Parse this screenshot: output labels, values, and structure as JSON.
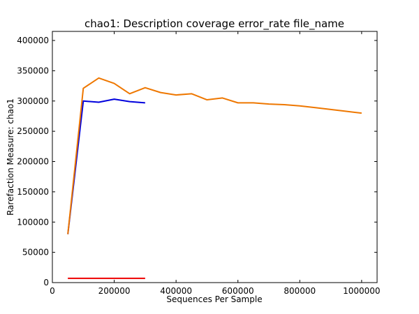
{
  "chart_data": {
    "type": "line",
    "title": "chao1: Description coverage  error_rate  file_name",
    "xlabel": "Sequences Per Sample",
    "ylabel": "Rarefaction Measure: chao1",
    "xlim": [
      0,
      1050000
    ],
    "ylim": [
      0,
      415000
    ],
    "xticks": [
      0,
      200000,
      400000,
      600000,
      800000,
      1000000
    ],
    "yticks": [
      0,
      50000,
      100000,
      150000,
      200000,
      250000,
      300000,
      350000,
      400000
    ],
    "grid": false,
    "series": [
      {
        "color": "#0000dd",
        "x": [
          50000,
          100000,
          150000,
          200000,
          250000,
          300000
        ],
        "y": [
          80000,
          300000,
          298000,
          303000,
          299000,
          297000
        ]
      },
      {
        "color": "#ee7700",
        "x": [
          50000,
          100000,
          150000,
          200000,
          250000,
          300000,
          350000,
          400000,
          450000,
          500000,
          550000,
          600000,
          650000,
          700000,
          750000,
          800000,
          850000,
          900000,
          950000,
          1000000
        ],
        "y": [
          80000,
          321000,
          338000,
          329000,
          312000,
          322000,
          314000,
          310000,
          312000,
          302000,
          305000,
          297000,
          297000,
          295000,
          294000,
          292000,
          289000,
          286000,
          283000,
          280000
        ]
      },
      {
        "color": "#ee0000",
        "x": [
          50000,
          100000,
          150000,
          200000,
          250000,
          300000
        ],
        "y": [
          7000,
          7000,
          7000,
          7000,
          7000,
          7000
        ]
      }
    ]
  }
}
